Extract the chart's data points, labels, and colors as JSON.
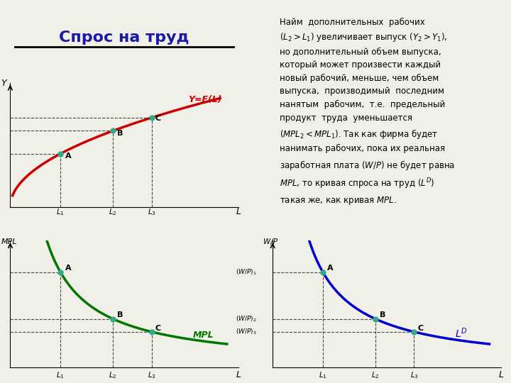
{
  "title": "Спрос на труд",
  "title_color": "#1a1aaa",
  "bg_color": "#f0f0e8",
  "panel_bg": "#f0f0e8",
  "top_curve_color": "#cc0000",
  "mpl_curve_color": "#007700",
  "ld_curve_color": "#0000cc",
  "L1": 0.22,
  "L2": 0.45,
  "L3": 0.62,
  "production_func_label": "Y=F(L)",
  "mpl_label": "MPL",
  "ld_label": "$L^D$",
  "points_color": "#33aa88",
  "text_right": "Найм  дополнительных  рабочих\n(L₂>L₁) увеличивает выпуск (Y₂>Y₁),\nно дополнительный объем выпуска,\nкоторый может произвести каждый\nновый рабочий, меньше, чем объем\nвыпуска,  производимый  последним\nнанятым  рабочим,  т.е.  предельный\nпродукт  труда  уменьшается\n(MPL₂<MPL₁). Так как фирма будет\nнанимать рабочих, пока их реальная\nзаработная плата (W/P) не будет равна\nMPL, то кривая спроса на труд (Lᴰ)\nтакая же, как кривая MPL."
}
